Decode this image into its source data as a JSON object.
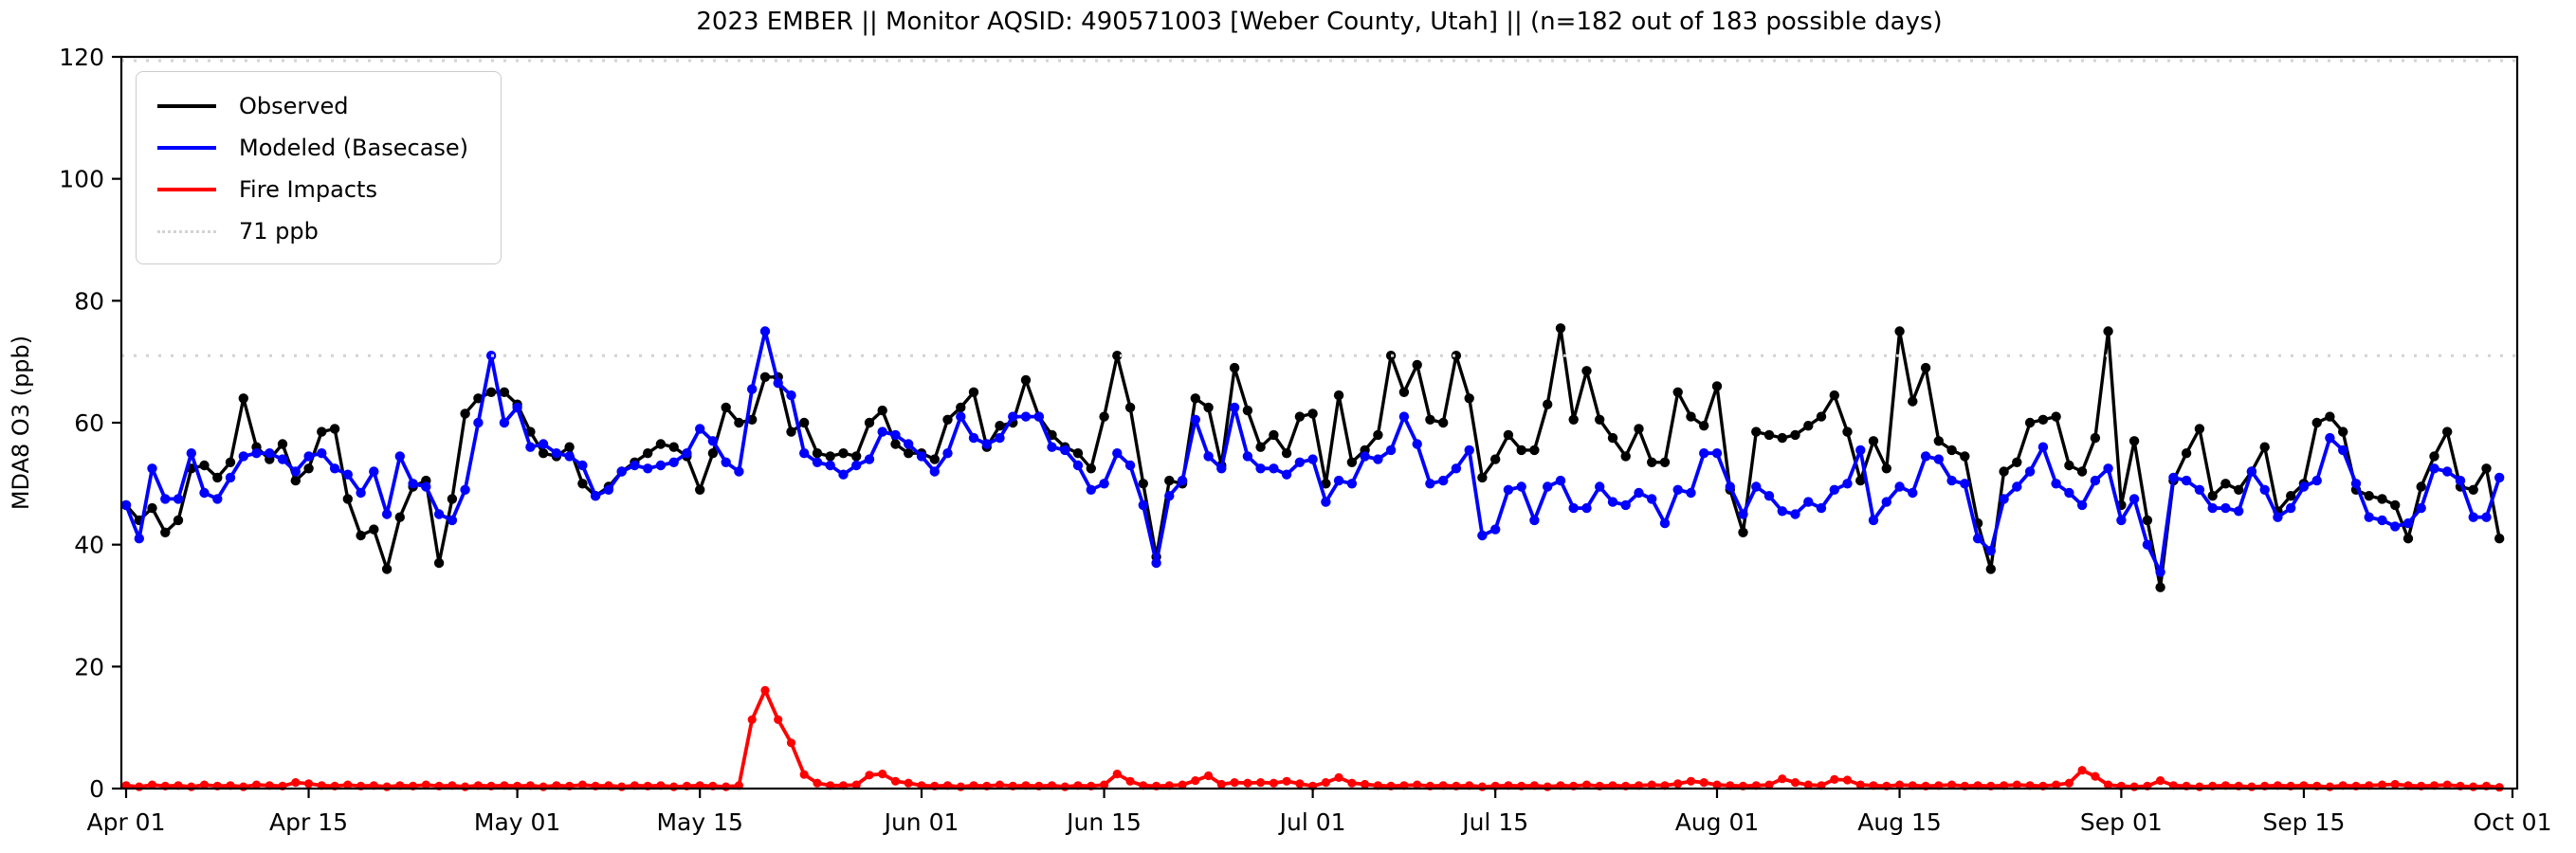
{
  "title": "2023 EMBER || Monitor AQSID: 490571003 [Weber County, Utah] || (n=182 out of 183 possible days)",
  "legend": {
    "items": [
      {
        "label": "Observed"
      },
      {
        "label": "Modeled (Basecase)"
      },
      {
        "label": "Fire Impacts"
      },
      {
        "label": "71 ppb"
      }
    ]
  },
  "chart_data": {
    "type": "line",
    "title": "2023 EMBER || Monitor AQSID: 490571003 [Weber County, Utah] || (n=182 out of 183 possible days)",
    "xlabel": "",
    "ylabel": "MDA8 O3 (ppb)",
    "ylim": [
      0,
      120
    ],
    "yticks": [
      0,
      20,
      40,
      60,
      80,
      100,
      120
    ],
    "x_tick_labels": [
      "Apr 01",
      "Apr 15",
      "May 01",
      "May 15",
      "Jun 01",
      "Jun 15",
      "Jul 01",
      "Jul 15",
      "Aug 01",
      "Aug 15",
      "Sep 01",
      "Sep 15",
      "Oct 01"
    ],
    "x_tick_days": [
      0,
      14,
      30,
      44,
      61,
      75,
      91,
      105,
      122,
      136,
      153,
      167,
      183
    ],
    "total_days": 183,
    "grid": false,
    "legend_position": "upper left",
    "threshold": {
      "label": "71 ppb",
      "value": 71,
      "top_value": 120,
      "color": "#d3d3d3"
    },
    "series": [
      {
        "name": "Observed",
        "color": "#000000",
        "marker": "circle",
        "values": [
          46.5,
          44,
          46,
          42,
          44,
          52.5,
          53,
          51,
          53.5,
          64,
          56,
          54,
          56.5,
          50.5,
          52.5,
          58.5,
          59,
          47.5,
          41.5,
          42.5,
          36,
          44.5,
          49.5,
          50.5,
          37,
          47.5,
          61.5,
          64,
          65,
          65,
          63,
          58.5,
          55,
          54.5,
          56,
          50,
          48,
          49.5,
          52,
          53.5,
          55,
          56.5,
          56,
          54.5,
          49,
          55,
          62.5,
          60,
          60.5,
          67.5,
          67.5,
          58.5,
          60,
          55,
          54.5,
          55,
          54.5,
          60,
          62,
          56.5,
          55,
          55,
          54,
          60.5,
          62.5,
          65,
          56,
          59.5,
          60,
          67,
          61,
          58,
          56,
          55,
          52.5,
          61,
          71,
          62.5,
          50,
          38,
          50.5,
          50,
          64,
          62.5,
          53,
          69,
          62,
          56,
          58,
          55,
          61,
          61.5,
          50,
          64.5,
          53.5,
          55.5,
          58,
          71,
          65,
          69.5,
          60.5,
          60,
          71,
          64,
          51,
          54,
          58,
          55.5,
          55.5,
          63,
          75.5,
          60.5,
          68.5,
          60.5,
          57.5,
          54.5,
          59,
          53.5,
          53.5,
          65,
          61,
          59.5,
          66,
          49,
          42,
          58.5,
          58,
          57.5,
          58,
          59.5,
          61,
          64.5,
          58.5,
          50.5,
          57,
          52.5,
          75,
          63.5,
          69,
          57,
          55.5,
          54.5,
          43.5,
          36,
          52,
          53.5,
          60,
          60.5,
          61,
          53,
          52,
          57.5,
          75,
          46.5,
          57,
          44,
          33,
          50.5,
          55,
          59,
          48,
          50,
          49,
          52,
          56,
          45.5,
          48,
          50,
          60,
          61,
          58.5,
          49,
          48,
          47.5,
          46.5,
          41,
          49.5,
          54.5,
          58.5,
          49.5,
          49,
          52.5,
          41
        ]
      },
      {
        "name": "Modeled (Basecase)",
        "color": "#0000ff",
        "marker": "circle",
        "values": [
          46.5,
          41,
          52.5,
          47.5,
          47.5,
          55,
          48.5,
          47.5,
          51,
          54.5,
          55,
          55,
          54,
          52,
          54.5,
          55,
          52.5,
          51.5,
          48.5,
          52,
          45,
          54.5,
          50,
          49.5,
          45,
          44,
          49,
          60,
          71,
          60,
          62.5,
          56,
          56.5,
          55,
          54.5,
          53,
          48,
          49,
          52,
          53,
          52.5,
          53,
          53.5,
          55,
          59,
          57,
          53.5,
          52,
          65.5,
          75,
          66.5,
          64.5,
          55,
          53.5,
          53,
          51.5,
          53,
          54,
          58.5,
          58,
          56.5,
          54.5,
          52,
          55,
          61,
          57.5,
          56.5,
          57.5,
          61,
          61,
          61,
          56,
          55.5,
          53,
          49,
          50,
          55,
          53,
          46.5,
          37,
          48,
          50.5,
          60.5,
          54.5,
          52.5,
          62.5,
          54.5,
          52.5,
          52.5,
          51.5,
          53.5,
          54,
          47,
          50.5,
          50,
          54.5,
          54,
          55.5,
          61,
          56.5,
          50,
          50.5,
          52.5,
          55.5,
          41.5,
          42.5,
          49,
          49.5,
          44,
          49.5,
          50.5,
          46,
          46,
          49.5,
          47,
          46.5,
          48.5,
          47.5,
          43.5,
          49,
          48.5,
          55,
          55,
          49.5,
          45,
          49.5,
          48,
          45.5,
          45,
          47,
          46,
          49,
          50,
          55.5,
          44,
          47,
          49.5,
          48.5,
          54.5,
          54,
          50.5,
          50,
          41,
          39,
          47.5,
          49.5,
          52,
          56,
          50,
          48.5,
          46.5,
          50.5,
          52.5,
          44,
          47.5,
          40,
          35.5,
          51,
          50.5,
          49,
          46,
          46,
          45.5,
          52,
          49,
          44.5,
          46,
          49.5,
          50.5,
          57.5,
          55.5,
          50,
          44.5,
          44,
          43,
          43.5,
          46,
          52.5,
          52,
          50.5,
          44.5,
          44.5,
          51
        ]
      },
      {
        "name": "Fire Impacts",
        "color": "#ff0000",
        "marker": "circle",
        "values": [
          0.5,
          0.3,
          0.6,
          0.4,
          0.5,
          0.3,
          0.6,
          0.4,
          0.5,
          0.3,
          0.6,
          0.5,
          0.4,
          1.0,
          0.8,
          0.5,
          0.4,
          0.6,
          0.4,
          0.5,
          0.3,
          0.5,
          0.4,
          0.6,
          0.4,
          0.5,
          0.3,
          0.5,
          0.4,
          0.5,
          0.4,
          0.5,
          0.3,
          0.5,
          0.4,
          0.6,
          0.4,
          0.5,
          0.3,
          0.5,
          0.4,
          0.5,
          0.3,
          0.4,
          0.5,
          0.4,
          0.3,
          0.5,
          11.3,
          16.1,
          11.3,
          7.5,
          2.3,
          0.9,
          0.5,
          0.5,
          0.6,
          2.2,
          2.4,
          1.2,
          0.9,
          0.5,
          0.4,
          0.5,
          0.3,
          0.5,
          0.4,
          0.6,
          0.4,
          0.5,
          0.4,
          0.5,
          0.3,
          0.5,
          0.4,
          0.6,
          2.4,
          1.2,
          0.5,
          0.4,
          0.5,
          0.6,
          1.3,
          2.1,
          0.7,
          1.0,
          0.9,
          1.0,
          0.9,
          1.2,
          0.8,
          0.4,
          1.0,
          1.8,
          0.9,
          0.7,
          0.5,
          0.4,
          0.5,
          0.6,
          0.4,
          0.5,
          0.4,
          0.5,
          0.3,
          0.4,
          0.5,
          0.4,
          0.5,
          0.3,
          0.5,
          0.4,
          0.6,
          0.4,
          0.5,
          0.4,
          0.5,
          0.6,
          0.5,
          0.8,
          1.2,
          1.0,
          0.6,
          0.5,
          0.4,
          0.5,
          0.6,
          1.6,
          1.0,
          0.6,
          0.5,
          1.5,
          1.4,
          0.6,
          0.5,
          0.4,
          0.6,
          0.5,
          0.4,
          0.5,
          0.6,
          0.4,
          0.5,
          0.4,
          0.5,
          0.6,
          0.5,
          0.4,
          0.6,
          0.9,
          3.0,
          2.0,
          0.6,
          0.4,
          0.3,
          0.4,
          1.3,
          0.5,
          0.4,
          0.3,
          0.4,
          0.5,
          0.4,
          0.3,
          0.4,
          0.5,
          0.4,
          0.5,
          0.4,
          0.3,
          0.5,
          0.4,
          0.5,
          0.6,
          0.7,
          0.5,
          0.4,
          0.5,
          0.6,
          0.4,
          0.3,
          0.4,
          0.2
        ]
      }
    ]
  }
}
